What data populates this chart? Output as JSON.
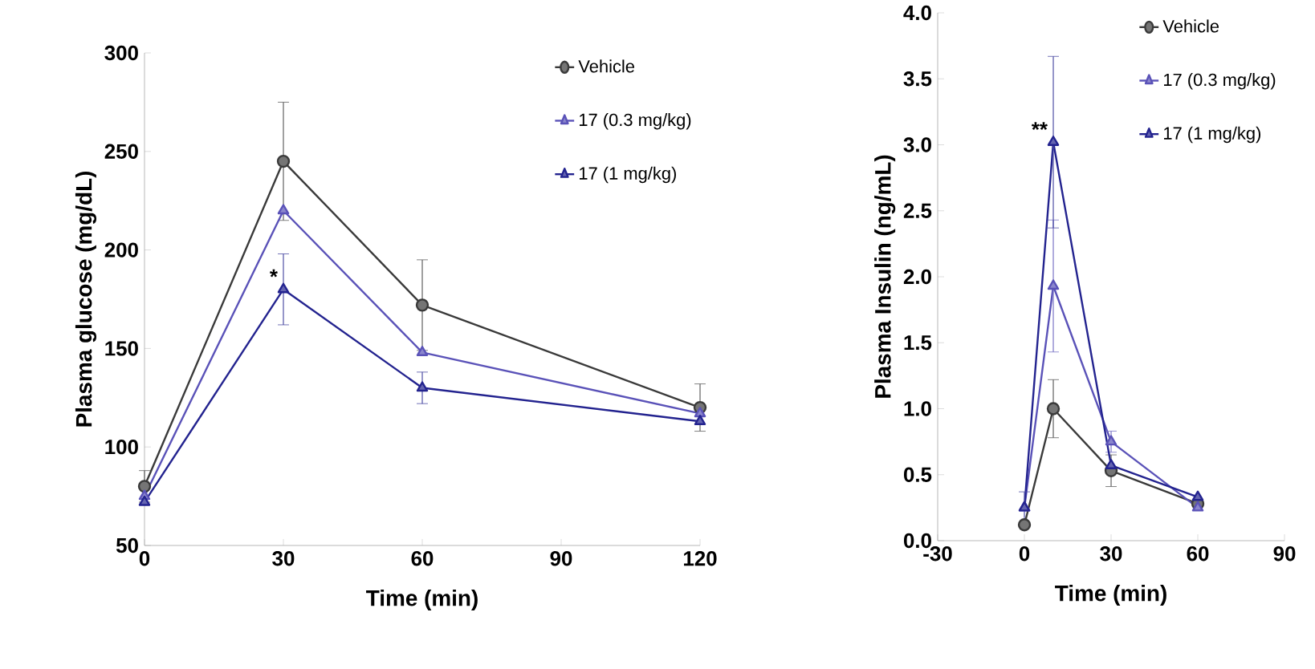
{
  "chart_data": [
    {
      "type": "line",
      "xlabel": "Time (min)",
      "ylabel": "Plasma glucose (mg/dL)",
      "x": [
        0,
        30,
        60,
        120
      ],
      "xlim": [
        0,
        120
      ],
      "xticks": [
        0,
        30,
        60,
        90,
        120
      ],
      "ylim": [
        50,
        300
      ],
      "yticks": [
        50,
        100,
        150,
        200,
        250,
        300
      ],
      "legend": "top right",
      "line_style": "solid",
      "series": [
        {
          "name": "Vehicle",
          "color": "#3a3a3a",
          "marker": "circle",
          "values": [
            80,
            245,
            172,
            120
          ],
          "errors": [
            8,
            30,
            23,
            12
          ]
        },
        {
          "name": "17 (0.3 mg/kg)",
          "color": "#5a52b8",
          "marker": "triangle",
          "values": [
            75,
            220,
            148,
            117
          ]
        },
        {
          "name": "17 (1 mg/kg)",
          "color": "#23238f",
          "marker": "triangle",
          "values": [
            72,
            180,
            130,
            113
          ],
          "errors": [
            null,
            18,
            8,
            null
          ]
        }
      ],
      "annotations": [
        "*"
      ]
    },
    {
      "type": "line",
      "xlabel": "Time (min)",
      "ylabel": "Plasma Insulin (ng/mL)",
      "x": [
        0,
        10,
        30,
        60
      ],
      "xlim": [
        -30,
        90
      ],
      "xticks": [
        -30,
        0,
        30,
        60,
        90
      ],
      "ylim": [
        0,
        4
      ],
      "yticks": [
        {
          "value": 0,
          "label": "0.0"
        },
        {
          "value": 0.5,
          "label": "0.5"
        },
        {
          "value": 1,
          "label": "1.0"
        },
        {
          "value": 1.5,
          "label": "1.5"
        },
        {
          "value": 2,
          "label": "2.0"
        },
        {
          "value": 2.5,
          "label": "2.5"
        },
        {
          "value": 3,
          "label": "3.0"
        },
        {
          "value": 3.5,
          "label": "3.5"
        },
        {
          "value": 4,
          "label": "4.0"
        }
      ],
      "legend": "top right",
      "line_style": "solid",
      "series": [
        {
          "name": "Vehicle",
          "color": "#3a3a3a",
          "marker": "circle",
          "values": [
            0.12,
            1.0,
            0.53,
            0.28
          ],
          "errors": [
            null,
            0.22,
            0.12,
            null
          ]
        },
        {
          "name": "17 (0.3 mg/kg)",
          "color": "#5a52b8",
          "marker": "triangle",
          "values": [
            0.25,
            1.93,
            0.75,
            0.25
          ],
          "errors": [
            null,
            0.5,
            0.08,
            null
          ]
        },
        {
          "name": "17 (1 mg/kg)",
          "color": "#23238f",
          "marker": "triangle",
          "values": [
            0.25,
            3.02,
            0.57,
            0.33
          ],
          "errors": [
            0.12,
            0.65,
            null,
            null
          ]
        }
      ],
      "annotations": [
        "**"
      ]
    }
  ]
}
